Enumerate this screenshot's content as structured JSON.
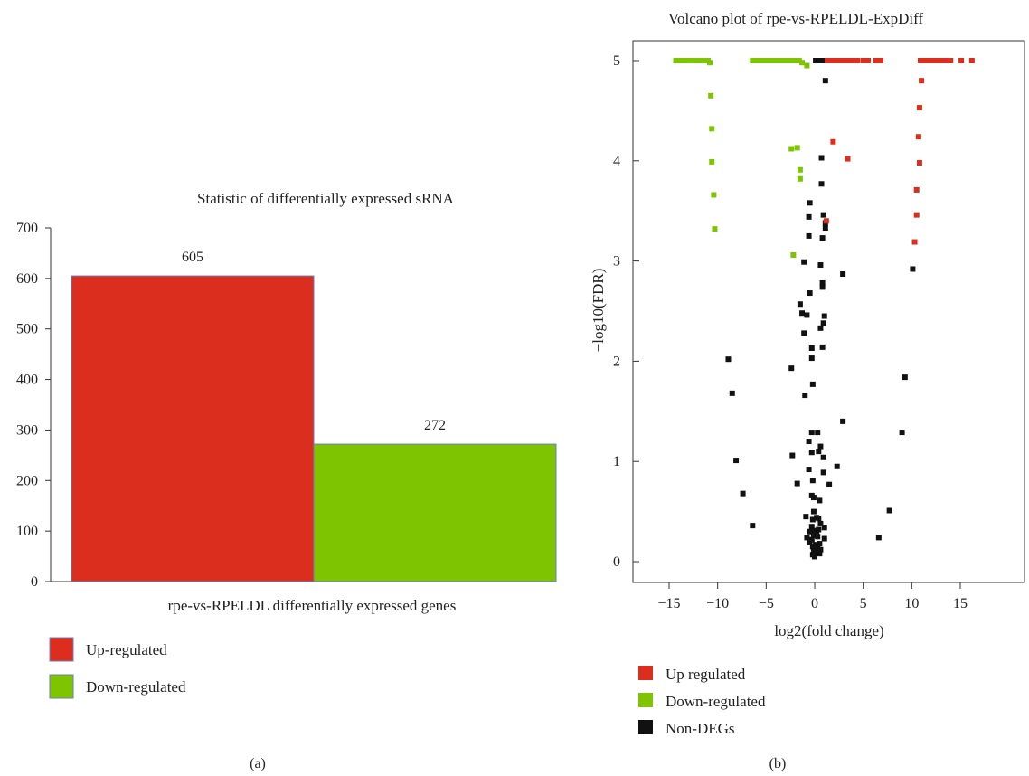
{
  "figure": {
    "panel_a_label": "(a)",
    "panel_b_label": "(b)"
  },
  "colors": {
    "up": "#dc2e1f",
    "down": "#7ec400",
    "non": "#111111",
    "bar_outline": "#6b7fb8"
  },
  "chart_data": [
    {
      "type": "bar",
      "title": "Statistic of differentially expressed sRNA",
      "xlabel": "rpe-vs-RPELDL differentially expressed genes",
      "ylabel": "",
      "ylim": [
        0,
        700
      ],
      "yticks": [
        0,
        100,
        200,
        300,
        400,
        500,
        600,
        700
      ],
      "categories": [
        "Up-regulated",
        "Down-regulated"
      ],
      "values": [
        605,
        272
      ],
      "value_labels": [
        "605",
        "272"
      ],
      "legend": [
        {
          "label": "Up-regulated",
          "color": "#dc2e1f"
        },
        {
          "label": "Down-regulated",
          "color": "#7ec400"
        }
      ],
      "legend_position": "bottom-left",
      "grid": false
    },
    {
      "type": "scatter",
      "title": "Volcano plot of rpe-vs-RPELDL-ExpDiff",
      "xlabel": "log2(fold change)",
      "ylabel": "−log10(FDR)",
      "xlim": [
        -18,
        17
      ],
      "ylim": [
        -0.2,
        5.2
      ],
      "xticks": [
        -15,
        -10,
        -5,
        0,
        5,
        10,
        15
      ],
      "xtick_labels": [
        "−15",
        "−10",
        "−5",
        "0",
        "5",
        "10",
        "15"
      ],
      "yticks": [
        0,
        1,
        2,
        3,
        4,
        5
      ],
      "yticks_labels": [
        "0",
        "1",
        "2",
        "3",
        "4",
        "5"
      ],
      "legend": [
        {
          "label": "Up regulated",
          "color": "#dc2e1f"
        },
        {
          "label": "Down-regulated",
          "color": "#7ec400"
        },
        {
          "label": "Non-DEGs",
          "color": "#111111"
        }
      ],
      "legend_position": "bottom-left",
      "grid": false,
      "series": [
        {
          "name": "Up regulated",
          "color": "#dc2e1f",
          "points": [
            [
              1.3,
              5
            ],
            [
              1.6,
              5
            ],
            [
              1.9,
              5
            ],
            [
              2.2,
              5
            ],
            [
              2.5,
              5
            ],
            [
              2.8,
              5
            ],
            [
              3.1,
              5
            ],
            [
              3.4,
              5
            ],
            [
              3.7,
              5
            ],
            [
              4.0,
              5
            ],
            [
              4.4,
              5
            ],
            [
              5.0,
              5
            ],
            [
              5.5,
              5
            ],
            [
              6.3,
              5
            ],
            [
              6.8,
              5
            ],
            [
              10.9,
              5
            ],
            [
              11.2,
              5
            ],
            [
              11.5,
              5
            ],
            [
              11.8,
              5
            ],
            [
              12.1,
              5
            ],
            [
              12.4,
              5
            ],
            [
              12.7,
              5
            ],
            [
              13.0,
              5
            ],
            [
              13.3,
              5
            ],
            [
              13.6,
              5
            ],
            [
              14.0,
              5
            ],
            [
              15.1,
              5
            ],
            [
              16.2,
              5
            ],
            [
              11.0,
              4.8
            ],
            [
              10.8,
              4.53
            ],
            [
              10.7,
              4.24
            ],
            [
              10.8,
              3.98
            ],
            [
              10.5,
              3.71
            ],
            [
              10.5,
              3.46
            ],
            [
              10.3,
              3.19
            ],
            [
              1.9,
              4.19
            ],
            [
              3.4,
              4.02
            ],
            [
              1.2,
              3.4
            ]
          ]
        },
        {
          "name": "Down-regulated",
          "color": "#7ec400",
          "points": [
            [
              -14.3,
              5
            ],
            [
              -14.0,
              5
            ],
            [
              -13.7,
              5
            ],
            [
              -13.4,
              5
            ],
            [
              -13.1,
              5
            ],
            [
              -12.8,
              5
            ],
            [
              -12.5,
              5
            ],
            [
              -12.2,
              5
            ],
            [
              -11.9,
              5
            ],
            [
              -11.6,
              5
            ],
            [
              -11.3,
              5
            ],
            [
              -11.0,
              5
            ],
            [
              -10.8,
              4.98
            ],
            [
              -6.4,
              5
            ],
            [
              -6.1,
              5
            ],
            [
              -5.8,
              5
            ],
            [
              -5.5,
              5
            ],
            [
              -5.2,
              5
            ],
            [
              -4.9,
              5
            ],
            [
              -4.6,
              5
            ],
            [
              -4.3,
              5
            ],
            [
              -4.0,
              5
            ],
            [
              -3.7,
              5
            ],
            [
              -3.4,
              5
            ],
            [
              -3.1,
              5
            ],
            [
              -2.8,
              5
            ],
            [
              -2.5,
              5
            ],
            [
              -2.2,
              5
            ],
            [
              -1.9,
              5
            ],
            [
              -1.6,
              5
            ],
            [
              -1.3,
              4.98
            ],
            [
              -0.8,
              4.95
            ],
            [
              -10.7,
              4.65
            ],
            [
              -10.6,
              4.32
            ],
            [
              -10.6,
              3.99
            ],
            [
              -10.4,
              3.66
            ],
            [
              -10.3,
              3.32
            ],
            [
              -2.4,
              4.12
            ],
            [
              -1.8,
              4.13
            ],
            [
              -1.5,
              3.91
            ],
            [
              -1.5,
              3.82
            ],
            [
              -2.2,
              3.06
            ]
          ]
        },
        {
          "name": "Non-DEGs",
          "color": "#111111",
          "points": [
            [
              0.1,
              5
            ],
            [
              0.4,
              5
            ],
            [
              0.7,
              5
            ],
            [
              1.0,
              5
            ],
            [
              1.1,
              4.8
            ],
            [
              0.7,
              4.03
            ],
            [
              0.7,
              3.77
            ],
            [
              -0.5,
              3.58
            ],
            [
              0.9,
              3.46
            ],
            [
              -0.6,
              3.44
            ],
            [
              1.1,
              3.33
            ],
            [
              1.1,
              3.38
            ],
            [
              -0.6,
              3.25
            ],
            [
              0.8,
              3.23
            ],
            [
              -1.1,
              2.99
            ],
            [
              0.6,
              2.96
            ],
            [
              2.9,
              2.87
            ],
            [
              10.1,
              2.92
            ],
            [
              0.8,
              2.78
            ],
            [
              0.8,
              2.74
            ],
            [
              -0.5,
              2.68
            ],
            [
              -1.5,
              2.57
            ],
            [
              -1.3,
              2.48
            ],
            [
              -0.8,
              2.46
            ],
            [
              1.0,
              2.45
            ],
            [
              0.9,
              2.38
            ],
            [
              0.6,
              2.33
            ],
            [
              -1.1,
              2.28
            ],
            [
              -0.3,
              2.13
            ],
            [
              0.8,
              2.14
            ],
            [
              -0.3,
              2.03
            ],
            [
              -8.9,
              2.02
            ],
            [
              -2.4,
              1.93
            ],
            [
              -0.2,
              1.77
            ],
            [
              -8.5,
              1.68
            ],
            [
              -1.0,
              1.66
            ],
            [
              9.3,
              1.84
            ],
            [
              -0.3,
              1.29
            ],
            [
              0.3,
              1.29
            ],
            [
              2.9,
              1.4
            ],
            [
              9.0,
              1.29
            ],
            [
              -0.6,
              1.2
            ],
            [
              0.6,
              1.15
            ],
            [
              -0.3,
              1.09
            ],
            [
              0.4,
              1.1
            ],
            [
              -2.3,
              1.06
            ],
            [
              0.9,
              1.04
            ],
            [
              -8.1,
              1.01
            ],
            [
              2.3,
              0.95
            ],
            [
              -0.6,
              0.92
            ],
            [
              0.9,
              0.89
            ],
            [
              -0.2,
              0.81
            ],
            [
              -1.8,
              0.78
            ],
            [
              1.5,
              0.77
            ],
            [
              -7.4,
              0.68
            ],
            [
              -0.3,
              0.66
            ],
            [
              -0.1,
              0.64
            ],
            [
              0.5,
              0.61
            ],
            [
              7.7,
              0.51
            ],
            [
              -0.1,
              0.5
            ],
            [
              -0.9,
              0.45
            ],
            [
              0.2,
              0.44
            ],
            [
              0.4,
              0.43
            ],
            [
              -0.2,
              0.42
            ],
            [
              0.6,
              0.38
            ],
            [
              -0.3,
              0.35
            ],
            [
              -6.4,
              0.36
            ],
            [
              1.0,
              0.34
            ],
            [
              0.4,
              0.32
            ],
            [
              0.0,
              0.31
            ],
            [
              -0.5,
              0.3
            ],
            [
              0.2,
              0.28
            ],
            [
              -0.1,
              0.26
            ],
            [
              0.3,
              0.25
            ],
            [
              -0.8,
              0.24
            ],
            [
              1.0,
              0.23
            ],
            [
              6.6,
              0.24
            ],
            [
              -0.3,
              0.22
            ],
            [
              -0.5,
              0.19
            ],
            [
              0.5,
              0.18
            ],
            [
              0.1,
              0.17
            ],
            [
              -0.2,
              0.15
            ],
            [
              0.3,
              0.13
            ],
            [
              0.6,
              0.12
            ],
            [
              -0.1,
              0.1
            ],
            [
              0.2,
              0.09
            ],
            [
              0.5,
              0.08
            ],
            [
              -0.2,
              0.07
            ],
            [
              0.0,
              0.05
            ]
          ]
        }
      ]
    }
  ]
}
